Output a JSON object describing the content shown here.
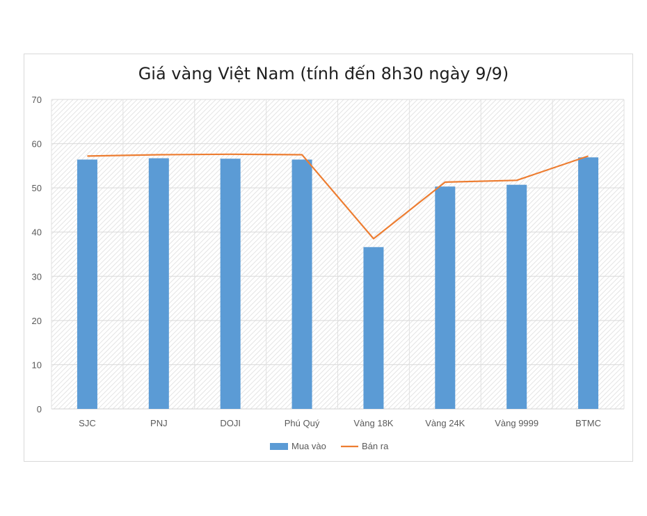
{
  "chart_data": {
    "type": "bar",
    "title": "Giá vàng Việt Nam (tính đến 8h30 ngày 9/9)",
    "categories": [
      "SJC",
      "PNJ",
      "DOJI",
      "Phú Quý",
      "Vàng 18K",
      "Vàng 24K",
      "Vàng 9999",
      "BTMC"
    ],
    "series": [
      {
        "name": "Mua vào",
        "kind": "bar",
        "color": "#5b9bd5",
        "values": [
          56.4,
          56.7,
          56.6,
          56.4,
          36.6,
          50.3,
          50.7,
          56.9
        ]
      },
      {
        "name": "Bán ra",
        "kind": "line",
        "color": "#ed7d31",
        "values": [
          57.2,
          57.5,
          57.6,
          57.5,
          38.5,
          51.3,
          51.7,
          57.2
        ]
      }
    ],
    "ylim": [
      0,
      70
    ],
    "yticks": [
      0,
      10,
      20,
      30,
      40,
      50,
      60,
      70
    ],
    "grid": true,
    "legend_position": "bottom"
  }
}
